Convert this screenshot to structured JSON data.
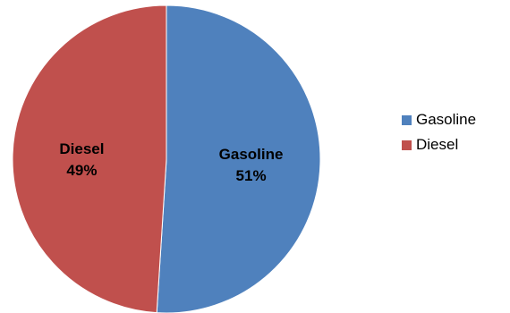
{
  "chart_data": {
    "type": "pie",
    "title": "",
    "categories": [
      "Gasoline",
      "Diesel"
    ],
    "values": [
      51,
      49
    ],
    "data_labels": [
      {
        "name": "Gasoline",
        "value": "51%"
      },
      {
        "name": "Diesel",
        "value": "49%"
      }
    ],
    "colors": [
      "#4F81BD",
      "#C0504D"
    ],
    "legend": {
      "placement": "right",
      "entries": [
        {
          "label": "Gasoline",
          "color": "#4F81BD"
        },
        {
          "label": "Diesel",
          "color": "#C0504D"
        }
      ]
    }
  }
}
